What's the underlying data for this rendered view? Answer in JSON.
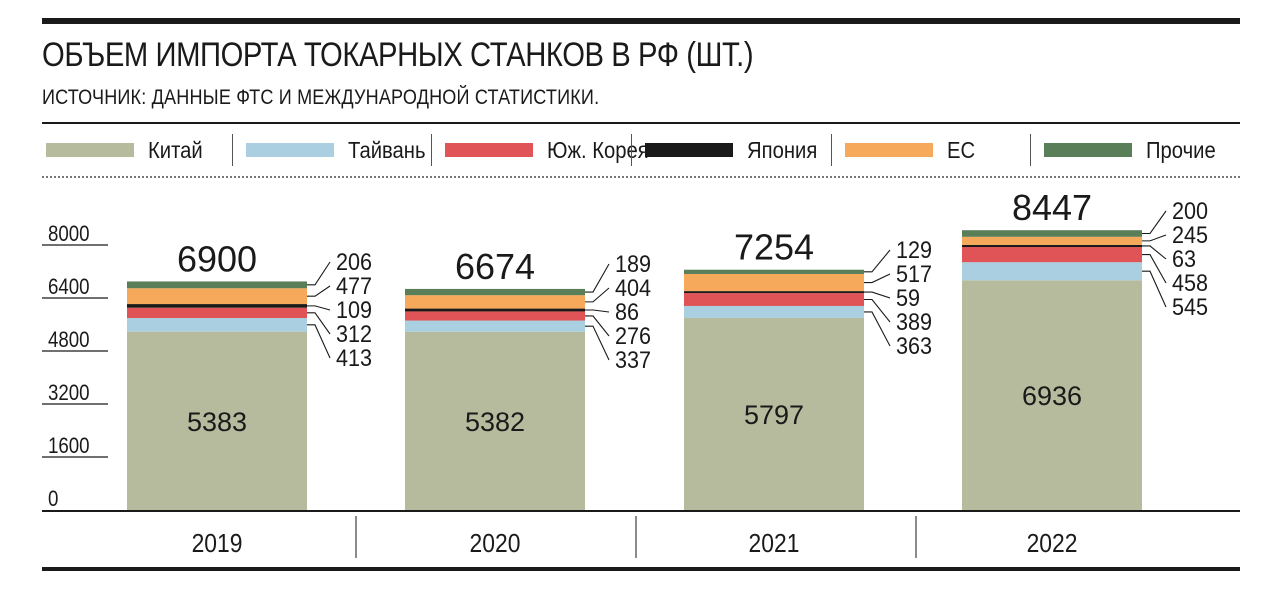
{
  "title": "ОБЪЕМ ИМПОРТА ТОКАРНЫХ СТАНКОВ В РФ (ШТ.)",
  "subtitle": "ИСТОЧНИК: ДАННЫЕ ФТС И МЕЖДУНАРОДНОЙ СТАТИСТИКИ.",
  "legend": [
    {
      "label": "Китай",
      "color": "#b5bb9c"
    },
    {
      "label": "Тайвань",
      "color": "#a9cfe0"
    },
    {
      "label": "Юж. Корея",
      "color": "#e05457"
    },
    {
      "label": "Япония",
      "color": "#1a1a1a"
    },
    {
      "label": "ЕС",
      "color": "#f6a95a"
    },
    {
      "label": "Прочие",
      "color": "#5a7e57"
    }
  ],
  "chart_data": {
    "type": "bar",
    "stacked": true,
    "categories": [
      "2019",
      "2020",
      "2021",
      "2022"
    ],
    "series": [
      {
        "name": "Китай",
        "color": "#b5bb9c",
        "values": [
          5383,
          5382,
          5797,
          6936
        ]
      },
      {
        "name": "Тайвань",
        "color": "#a9cfe0",
        "values": [
          413,
          337,
          363,
          545
        ]
      },
      {
        "name": "Юж. Корея",
        "color": "#e05457",
        "values": [
          312,
          276,
          389,
          458
        ]
      },
      {
        "name": "Япония",
        "color": "#1a1a1a",
        "values": [
          109,
          86,
          59,
          63
        ]
      },
      {
        "name": "ЕС",
        "color": "#f6a95a",
        "values": [
          477,
          404,
          517,
          245
        ]
      },
      {
        "name": "Прочие",
        "color": "#5a7e57",
        "values": [
          206,
          189,
          129,
          200
        ]
      }
    ],
    "totals": [
      6900,
      6674,
      7254,
      8447
    ],
    "y_ticks": [
      "0",
      "1600",
      "3200",
      "4800",
      "6400",
      "8000"
    ],
    "ylim": [
      0,
      8000
    ],
    "legend_position": "top",
    "grid": false
  }
}
